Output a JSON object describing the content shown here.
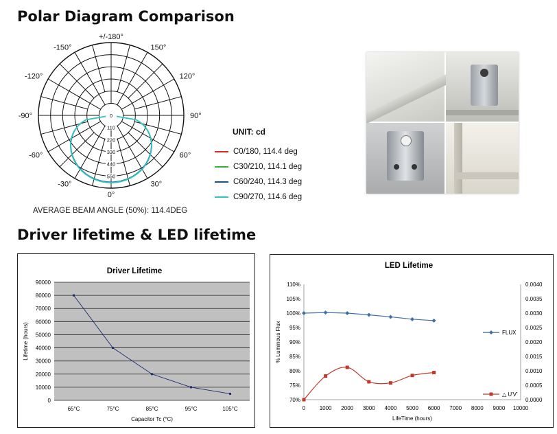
{
  "headings": {
    "polar": "Polar Diagram Comparison",
    "lifetime": "Driver lifetime & LED lifetime"
  },
  "polar": {
    "angle_labels": {
      "top": "+/-180°",
      "l150": "-150°",
      "r150": "150°",
      "l120": "-120°",
      "r120": "120°",
      "l90": "-90°",
      "r90": "90°",
      "l60": "-60°",
      "r60": "60°",
      "l30": "-30°",
      "r30": "30°",
      "bottom": "0°"
    },
    "radial_labels": [
      "0",
      "110",
      "220",
      "330",
      "440",
      "550"
    ],
    "unit": "UNIT: cd",
    "beam_angle": "AVERAGE BEAM ANGLE (50%): 114.4DEG",
    "series": [
      {
        "name": "C0/180, 114.4 deg",
        "color": "#e0261f"
      },
      {
        "name": "C30/210, 114.1 deg",
        "color": "#34b233"
      },
      {
        "name": "C60/240, 114.3 deg",
        "color": "#1e4e8c"
      },
      {
        "name": "C90/270, 114.6 deg",
        "color": "#2ec4c4"
      }
    ]
  },
  "photo": {
    "quadrant_names": [
      "panel-corner",
      "mount-clip-top",
      "mount-clip-bottom",
      "panel-edge"
    ]
  },
  "chart_data": [
    {
      "type": "line",
      "title": "Driver Lifetime",
      "xlabel": "Capacitor Tc (°C)",
      "ylabel": "Lifetime (hours)",
      "categories": [
        "65°C",
        "75°C",
        "85°C",
        "95°C",
        "105°C"
      ],
      "values": [
        80000,
        40000,
        20000,
        10000,
        5000
      ],
      "ylim": [
        0,
        90000
      ],
      "yticks": [
        "0",
        "10000",
        "20000",
        "30000",
        "40000",
        "50000",
        "60000",
        "70000",
        "80000",
        "90000"
      ],
      "grid": true,
      "plot_background": "#c0c0c0",
      "line_color": "#1a2c6b"
    },
    {
      "type": "line",
      "title": "LED Lifetime",
      "xlabel": "LifeTime (hours)",
      "ylabel": "% Luminous Flux",
      "x": [
        0,
        1000,
        2000,
        3000,
        4000,
        5000,
        6000
      ],
      "xticks": [
        "0",
        "1000",
        "2000",
        "3000",
        "4000",
        "5000",
        "6000",
        "7000",
        "8000",
        "9000",
        "10000"
      ],
      "xlim": [
        0,
        10000
      ],
      "ylim": [
        70,
        110
      ],
      "yticks": [
        "70%",
        "75%",
        "80%",
        "85%",
        "90%",
        "95%",
        "100%",
        "105%",
        "110%"
      ],
      "y2lim": [
        0,
        0.004
      ],
      "y2ticks": [
        "0.0000",
        "0.0005",
        "0.0010",
        "0.0015",
        "0.0020",
        "0.0025",
        "0.0030",
        "0.0035",
        "0.0040"
      ],
      "legend_position": "right",
      "series": [
        {
          "name": "FLUX",
          "axis": "left",
          "values": [
            100,
            100.2,
            100,
            99.4,
            98.7,
            97.9,
            97.4
          ],
          "color": "#3f6fa6",
          "marker": "diamond"
        },
        {
          "name": "△ U'V'",
          "axis": "right",
          "values": [
            0.0,
            0.00082,
            0.00112,
            0.00062,
            0.00058,
            0.00084,
            0.00094
          ],
          "color": "#c0392b",
          "marker": "square"
        }
      ]
    }
  ]
}
